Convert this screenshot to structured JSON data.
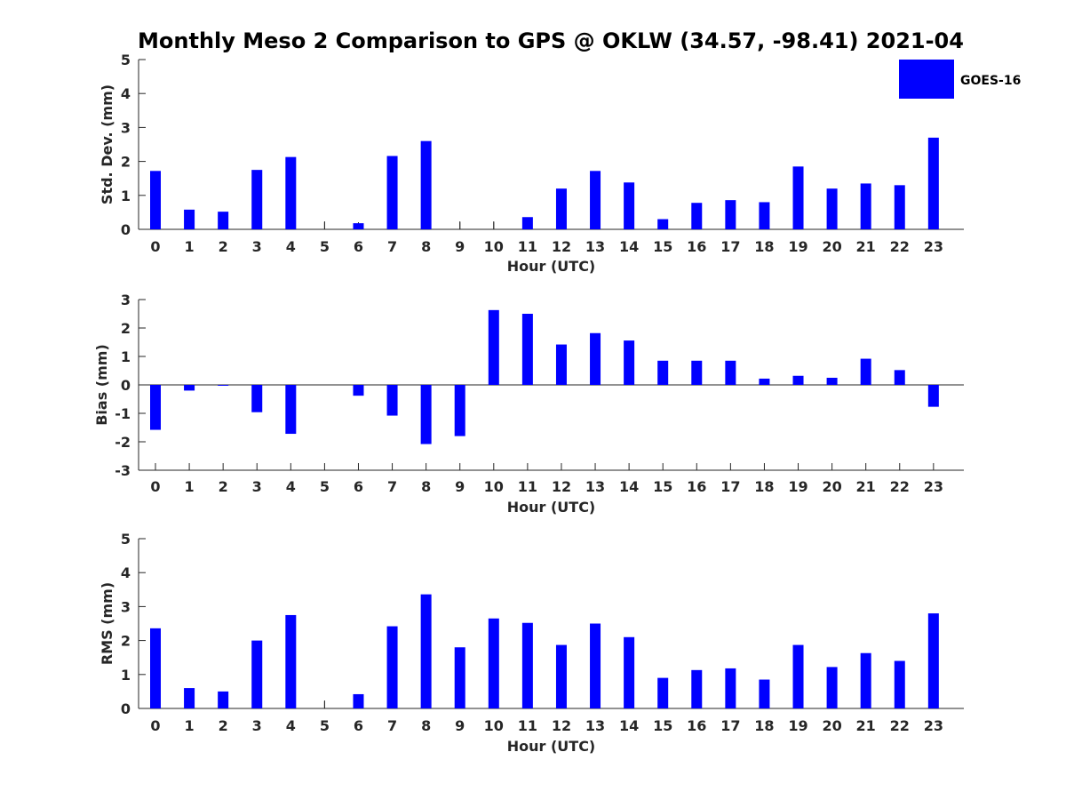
{
  "chart_data": {
    "type": "bar",
    "title": "Monthly Meso 2 Comparison to GPS @ OKLW (34.57, -98.41) 2021-04",
    "legend": {
      "label": "GOES-16",
      "color": "#0000ff",
      "position": "top-right"
    },
    "categories": [
      "0",
      "1",
      "2",
      "3",
      "4",
      "5",
      "6",
      "7",
      "8",
      "9",
      "10",
      "11",
      "12",
      "13",
      "14",
      "15",
      "16",
      "17",
      "18",
      "19",
      "20",
      "21",
      "22",
      "23"
    ],
    "panels": [
      {
        "id": "std",
        "ylabel": "Std. Dev. (mm)",
        "xlabel": "Hour (UTC)",
        "ylim": [
          0,
          5
        ],
        "yticks": [
          "0",
          "1",
          "2",
          "3",
          "4",
          "5"
        ],
        "series": [
          {
            "name": "GOES-16",
            "values": [
              1.72,
              0.58,
              0.52,
              1.75,
              2.13,
              0,
              0.18,
              2.16,
              2.6,
              0,
              0,
              0.36,
              1.2,
              1.72,
              1.38,
              0.3,
              0.78,
              0.86,
              0.8,
              1.85,
              1.2,
              1.35,
              1.3,
              2.7
            ]
          }
        ]
      },
      {
        "id": "bias",
        "ylabel": "Bias (mm)",
        "xlabel": "Hour (UTC)",
        "ylim": [
          -3,
          3
        ],
        "yticks": [
          "-3",
          "-2",
          "-1",
          "0",
          "1",
          "2",
          "3"
        ],
        "series": [
          {
            "name": "GOES-16",
            "values": [
              -1.58,
              -0.2,
              -0.03,
              -0.96,
              -1.72,
              0,
              -0.38,
              -1.08,
              -2.08,
              -1.8,
              2.63,
              2.5,
              1.42,
              1.82,
              1.56,
              0.85,
              0.85,
              0.85,
              0.22,
              0.32,
              0.25,
              0.92,
              0.52,
              -0.77
            ]
          }
        ]
      },
      {
        "id": "rms",
        "ylabel": "RMS (mm)",
        "xlabel": "Hour (UTC)",
        "ylim": [
          0,
          5
        ],
        "yticks": [
          "0",
          "1",
          "2",
          "3",
          "4",
          "5"
        ],
        "series": [
          {
            "name": "GOES-16",
            "values": [
              2.36,
              0.6,
              0.5,
              2.0,
              2.75,
              0,
              0.42,
              2.42,
              3.36,
              1.8,
              2.65,
              2.52,
              1.87,
              2.5,
              2.1,
              0.9,
              1.13,
              1.18,
              0.85,
              1.87,
              1.22,
              1.63,
              1.4,
              2.8
            ]
          }
        ]
      }
    ]
  }
}
